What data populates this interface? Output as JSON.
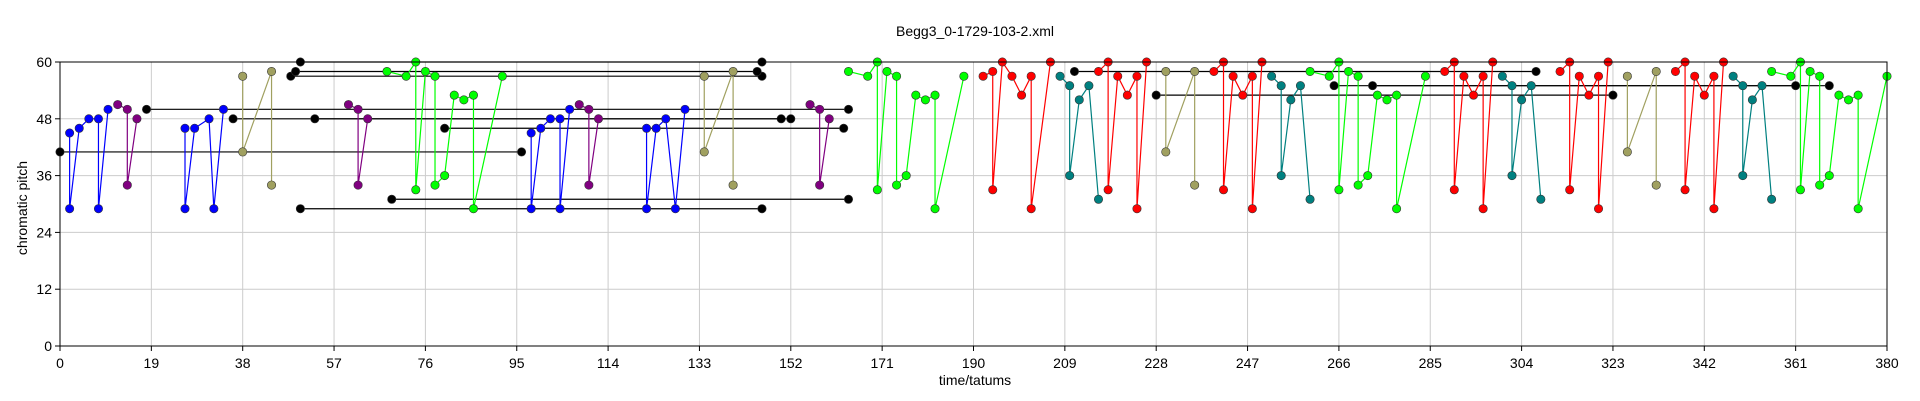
{
  "chart_data": {
    "type": "line",
    "title": "Begg3_0-1729-103-2.xml",
    "xlabel": "time/tatums",
    "ylabel": "chromatic pitch",
    "xlim": [
      0,
      380
    ],
    "ylim": [
      0,
      60
    ],
    "grid": true,
    "xticks": [
      "0",
      "19",
      "38",
      "57",
      "76",
      "95",
      "114",
      "133",
      "152",
      "171",
      "190",
      "209",
      "228",
      "247",
      "266",
      "285",
      "304",
      "323",
      "342",
      "361",
      "380"
    ],
    "yticks": [
      "0",
      "12",
      "24",
      "36",
      "48",
      "60"
    ],
    "series": [
      {
        "color": "#000000",
        "points": [
          [
            0,
            41
          ],
          [
            96,
            41
          ]
        ]
      },
      {
        "color": "#000000",
        "points": [
          [
            18,
            50
          ],
          [
            164,
            50
          ]
        ]
      },
      {
        "color": "#000000",
        "points": [
          [
            36,
            48
          ],
          [
            150,
            48
          ]
        ]
      },
      {
        "color": "#000000",
        "points": [
          [
            48,
            57
          ],
          [
            146,
            57
          ]
        ]
      },
      {
        "color": "#000000",
        "points": [
          [
            49,
            58
          ],
          [
            145,
            58
          ]
        ]
      },
      {
        "color": "#000000",
        "points": [
          [
            50,
            60
          ],
          [
            146,
            60
          ]
        ]
      },
      {
        "color": "#000000",
        "points": [
          [
            50,
            29
          ],
          [
            146,
            29
          ]
        ]
      },
      {
        "color": "#000000",
        "points": [
          [
            69,
            31
          ],
          [
            164,
            31
          ]
        ]
      },
      {
        "color": "#000000",
        "points": [
          [
            80,
            46
          ],
          [
            163,
            46
          ]
        ]
      },
      {
        "color": "#000000",
        "points": [
          [
            53,
            48
          ],
          [
            152,
            48
          ]
        ]
      },
      {
        "color": "#000000",
        "points": [
          [
            211,
            58
          ],
          [
            307,
            58
          ]
        ]
      },
      {
        "color": "#000000",
        "points": [
          [
            228,
            53
          ],
          [
            323,
            53
          ]
        ]
      },
      {
        "color": "#000000",
        "points": [
          [
            265,
            55
          ],
          [
            361,
            55
          ]
        ]
      },
      {
        "color": "#000000",
        "points": [
          [
            273,
            55
          ],
          [
            368,
            55
          ]
        ]
      },
      {
        "color": "#0000ff",
        "points": [
          [
            2,
            45
          ],
          [
            2,
            29
          ],
          [
            4,
            46
          ],
          [
            6,
            48
          ],
          [
            8,
            48
          ],
          [
            8,
            29
          ],
          [
            10,
            50
          ]
        ]
      },
      {
        "color": "#0000ff",
        "points": [
          [
            26,
            46
          ],
          [
            26,
            29
          ],
          [
            28,
            46
          ],
          [
            31,
            48
          ],
          [
            32,
            29
          ],
          [
            34,
            50
          ]
        ]
      },
      {
        "color": "#0000ff",
        "points": [
          [
            98,
            45
          ],
          [
            98,
            29
          ],
          [
            100,
            46
          ],
          [
            102,
            48
          ],
          [
            104,
            48
          ],
          [
            104,
            29
          ],
          [
            106,
            50
          ]
        ]
      },
      {
        "color": "#0000ff",
        "points": [
          [
            122,
            46
          ],
          [
            122,
            29
          ],
          [
            124,
            46
          ],
          [
            126,
            48
          ],
          [
            128,
            29
          ],
          [
            130,
            50
          ]
        ]
      },
      {
        "color": "#800080",
        "points": [
          [
            12,
            51
          ],
          [
            14,
            50
          ],
          [
            14,
            34
          ],
          [
            16,
            48
          ]
        ]
      },
      {
        "color": "#800080",
        "points": [
          [
            60,
            51
          ],
          [
            62,
            50
          ],
          [
            62,
            34
          ],
          [
            64,
            48
          ]
        ]
      },
      {
        "color": "#800080",
        "points": [
          [
            108,
            51
          ],
          [
            110,
            50
          ],
          [
            110,
            34
          ],
          [
            112,
            48
          ]
        ]
      },
      {
        "color": "#800080",
        "points": [
          [
            156,
            51
          ],
          [
            158,
            50
          ],
          [
            158,
            34
          ],
          [
            160,
            48
          ]
        ]
      },
      {
        "color": "#a0a060",
        "points": [
          [
            38,
            57
          ],
          [
            38,
            41
          ],
          [
            44,
            58
          ],
          [
            44,
            34
          ]
        ]
      },
      {
        "color": "#a0a060",
        "points": [
          [
            134,
            57
          ],
          [
            134,
            41
          ],
          [
            140,
            58
          ],
          [
            140,
            34
          ]
        ]
      },
      {
        "color": "#a0a060",
        "points": [
          [
            230,
            58
          ],
          [
            230,
            41
          ],
          [
            236,
            58
          ],
          [
            236,
            34
          ]
        ]
      },
      {
        "color": "#a0a060",
        "points": [
          [
            326,
            57
          ],
          [
            326,
            41
          ],
          [
            332,
            58
          ],
          [
            332,
            34
          ]
        ]
      },
      {
        "color": "#00ff00",
        "points": [
          [
            68,
            58
          ],
          [
            72,
            57
          ],
          [
            74,
            60
          ],
          [
            74,
            33
          ],
          [
            76,
            58
          ],
          [
            78,
            57
          ],
          [
            78,
            34
          ],
          [
            80,
            36
          ],
          [
            82,
            53
          ],
          [
            84,
            52
          ],
          [
            86,
            53
          ],
          [
            86,
            29
          ],
          [
            92,
            57
          ]
        ]
      },
      {
        "color": "#00ff00",
        "points": [
          [
            164,
            58
          ],
          [
            168,
            57
          ],
          [
            170,
            60
          ],
          [
            170,
            33
          ],
          [
            172,
            58
          ],
          [
            174,
            57
          ],
          [
            174,
            34
          ],
          [
            176,
            36
          ],
          [
            178,
            53
          ],
          [
            180,
            52
          ],
          [
            182,
            53
          ],
          [
            182,
            29
          ],
          [
            188,
            57
          ]
        ]
      },
      {
        "color": "#00ff00",
        "points": [
          [
            260,
            58
          ],
          [
            264,
            57
          ],
          [
            266,
            60
          ],
          [
            266,
            33
          ],
          [
            268,
            58
          ],
          [
            270,
            57
          ],
          [
            270,
            34
          ],
          [
            272,
            36
          ],
          [
            274,
            53
          ],
          [
            276,
            52
          ],
          [
            278,
            53
          ],
          [
            278,
            29
          ],
          [
            284,
            57
          ]
        ]
      },
      {
        "color": "#00ff00",
        "points": [
          [
            356,
            58
          ],
          [
            360,
            57
          ],
          [
            362,
            60
          ],
          [
            362,
            33
          ],
          [
            364,
            58
          ],
          [
            366,
            57
          ],
          [
            366,
            34
          ],
          [
            368,
            36
          ],
          [
            370,
            53
          ],
          [
            372,
            52
          ],
          [
            374,
            53
          ],
          [
            374,
            29
          ],
          [
            380,
            57
          ]
        ]
      },
      {
        "color": "#ff0000",
        "points": [
          [
            192,
            57
          ],
          [
            194,
            58
          ],
          [
            194,
            33
          ],
          [
            196,
            60
          ],
          [
            198,
            57
          ],
          [
            200,
            53
          ],
          [
            202,
            57
          ],
          [
            202,
            29
          ],
          [
            206,
            60
          ]
        ]
      },
      {
        "color": "#ff0000",
        "points": [
          [
            216,
            58
          ],
          [
            218,
            60
          ],
          [
            218,
            33
          ],
          [
            220,
            57
          ],
          [
            222,
            53
          ],
          [
            224,
            57
          ],
          [
            224,
            29
          ],
          [
            226,
            60
          ]
        ]
      },
      {
        "color": "#ff0000",
        "points": [
          [
            240,
            58
          ],
          [
            242,
            60
          ],
          [
            242,
            33
          ],
          [
            244,
            57
          ],
          [
            246,
            53
          ],
          [
            248,
            57
          ],
          [
            248,
            29
          ],
          [
            250,
            60
          ]
        ]
      },
      {
        "color": "#ff0000",
        "points": [
          [
            288,
            58
          ],
          [
            290,
            60
          ],
          [
            290,
            33
          ],
          [
            292,
            57
          ],
          [
            294,
            53
          ],
          [
            296,
            57
          ],
          [
            296,
            29
          ],
          [
            298,
            60
          ]
        ]
      },
      {
        "color": "#ff0000",
        "points": [
          [
            312,
            58
          ],
          [
            314,
            60
          ],
          [
            314,
            33
          ],
          [
            316,
            57
          ],
          [
            318,
            53
          ],
          [
            320,
            57
          ],
          [
            320,
            29
          ],
          [
            322,
            60
          ]
        ]
      },
      {
        "color": "#ff0000",
        "points": [
          [
            336,
            58
          ],
          [
            338,
            60
          ],
          [
            338,
            33
          ],
          [
            340,
            57
          ],
          [
            342,
            53
          ],
          [
            344,
            57
          ],
          [
            344,
            29
          ],
          [
            346,
            60
          ]
        ]
      },
      {
        "color": "#008080",
        "points": [
          [
            208,
            57
          ],
          [
            210,
            55
          ],
          [
            210,
            36
          ],
          [
            212,
            52
          ],
          [
            214,
            55
          ],
          [
            216,
            31
          ]
        ]
      },
      {
        "color": "#008080",
        "points": [
          [
            252,
            57
          ],
          [
            254,
            55
          ],
          [
            254,
            36
          ],
          [
            256,
            52
          ],
          [
            258,
            55
          ],
          [
            260,
            31
          ]
        ]
      },
      {
        "color": "#008080",
        "points": [
          [
            300,
            57
          ],
          [
            302,
            55
          ],
          [
            302,
            36
          ],
          [
            304,
            52
          ],
          [
            306,
            55
          ],
          [
            308,
            31
          ]
        ]
      },
      {
        "color": "#008080",
        "points": [
          [
            348,
            57
          ],
          [
            350,
            55
          ],
          [
            350,
            36
          ],
          [
            352,
            52
          ],
          [
            354,
            55
          ],
          [
            356,
            31
          ]
        ]
      }
    ]
  }
}
